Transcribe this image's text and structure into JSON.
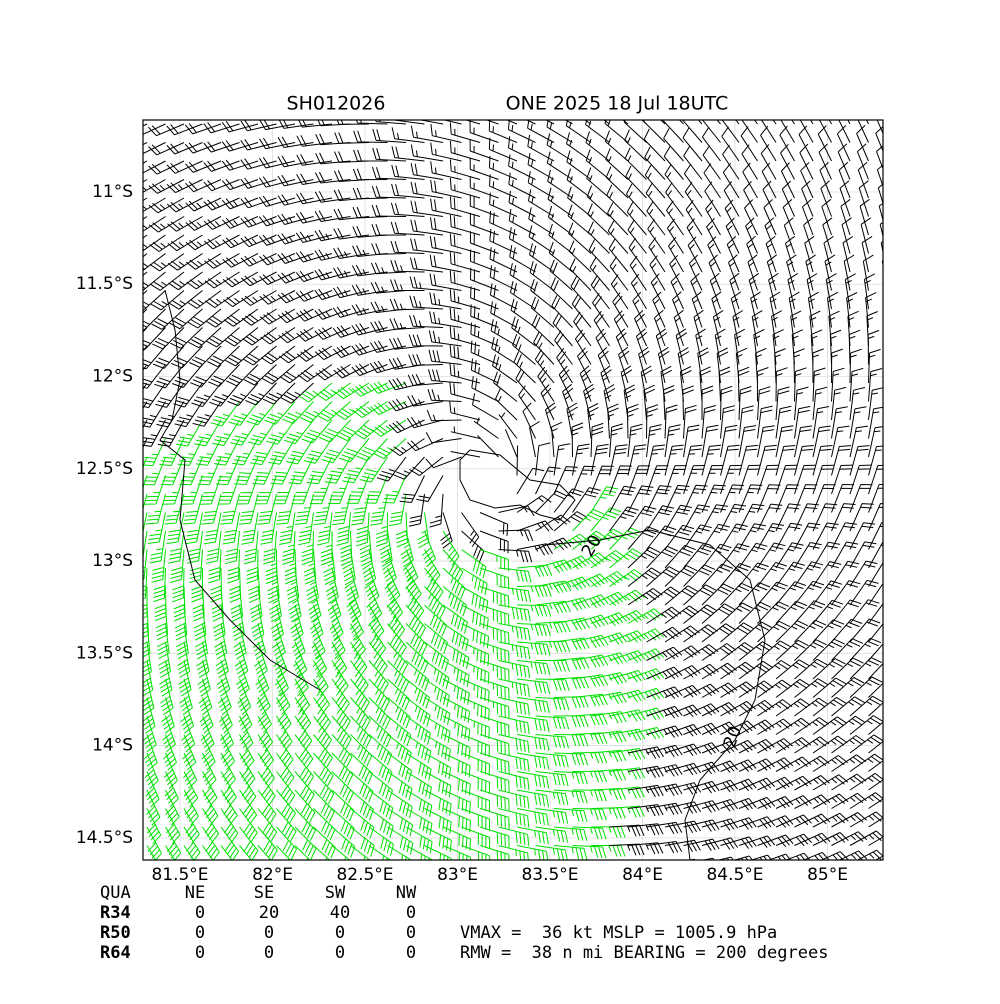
{
  "chart_data": {
    "type": "map",
    "title_left": "SH012026",
    "title_right": "ONE 2025 18 Jul 18UTC",
    "xlim": [
      81.3,
      85.3
    ],
    "ylim": [
      -14.62,
      -10.61
    ],
    "xticks": [
      {
        "value": 81.5,
        "label": "81.5°E"
      },
      {
        "value": 82,
        "label": "82°E"
      },
      {
        "value": 82.5,
        "label": "82.5°E"
      },
      {
        "value": 83,
        "label": "83°E"
      },
      {
        "value": 83.5,
        "label": "83.5°E"
      },
      {
        "value": 84,
        "label": "84°E"
      },
      {
        "value": 84.5,
        "label": "84.5°E"
      },
      {
        "value": 85,
        "label": "85°E"
      }
    ],
    "yticks": [
      {
        "value": -11,
        "label": "11°S"
      },
      {
        "value": -11.5,
        "label": "11.5°S"
      },
      {
        "value": -12,
        "label": "12°S"
      },
      {
        "value": -12.5,
        "label": "12.5°S"
      },
      {
        "value": -13,
        "label": "13°S"
      },
      {
        "value": -13.5,
        "label": "13.5°S"
      },
      {
        "value": -14,
        "label": "14°S"
      },
      {
        "value": -14.5,
        "label": "14.5°S"
      }
    ],
    "grid": true,
    "contour_labels": [
      20,
      20
    ],
    "table": {
      "header": [
        "QUA",
        "NE",
        "SE",
        "SW",
        "NW"
      ],
      "rows": [
        [
          "R34",
          0,
          20,
          40,
          0
        ],
        [
          "R50",
          0,
          0,
          0,
          0
        ],
        [
          "R64",
          0,
          0,
          0,
          0
        ]
      ]
    },
    "summary": [
      "VMAX =  36 kt MSLP = 1005.9 hPa",
      "RMW =  38 n mi BEARING = 200 degrees"
    ]
  }
}
